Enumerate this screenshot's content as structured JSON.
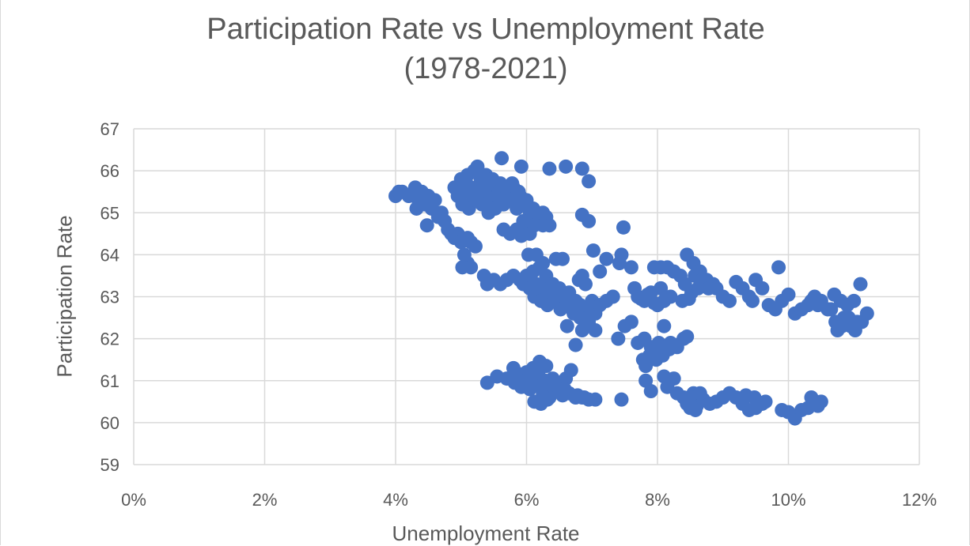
{
  "chart_data": {
    "type": "scatter",
    "title": "Participation Rate vs Unemployment Rate\n(1978-2021)",
    "xlabel": "Unemployment Rate",
    "ylabel": "Participation Rate",
    "xlim": [
      0,
      0.12
    ],
    "ylim": [
      59,
      67
    ],
    "xticks": [
      0,
      0.02,
      0.04,
      0.06,
      0.08,
      0.1,
      0.12
    ],
    "xtick_labels": [
      "0%",
      "2%",
      "4%",
      "6%",
      "8%",
      "10%",
      "12%"
    ],
    "yticks": [
      59,
      60,
      61,
      62,
      63,
      64,
      65,
      66,
      67
    ],
    "ytick_labels": [
      "59",
      "60",
      "61",
      "62",
      "63",
      "64",
      "65",
      "66",
      "67"
    ],
    "grid": true,
    "legend": "none",
    "marker_color": "#4472c4",
    "points": [
      [
        0.04,
        65.4
      ],
      [
        0.0405,
        65.5
      ],
      [
        0.041,
        65.5
      ],
      [
        0.042,
        65.4
      ],
      [
        0.043,
        65.6
      ],
      [
        0.0435,
        65.3
      ],
      [
        0.044,
        65.5
      ],
      [
        0.0445,
        65.2
      ],
      [
        0.045,
        65.4
      ],
      [
        0.046,
        65.3
      ],
      [
        0.0432,
        65.1
      ],
      [
        0.0455,
        65.1
      ],
      [
        0.0465,
        64.9
      ],
      [
        0.0448,
        64.7
      ],
      [
        0.047,
        65.0
      ],
      [
        0.0475,
        64.8
      ],
      [
        0.048,
        64.6
      ],
      [
        0.0485,
        64.5
      ],
      [
        0.049,
        64.4
      ],
      [
        0.0495,
        64.5
      ],
      [
        0.05,
        64.3
      ],
      [
        0.051,
        64.4
      ],
      [
        0.0515,
        64.3
      ],
      [
        0.0522,
        64.2
      ],
      [
        0.0505,
        64.0
      ],
      [
        0.051,
        63.8
      ],
      [
        0.0502,
        63.7
      ],
      [
        0.0515,
        63.7
      ],
      [
        0.049,
        65.6
      ],
      [
        0.0495,
        65.4
      ],
      [
        0.05,
        65.8
      ],
      [
        0.0505,
        65.5
      ],
      [
        0.051,
        65.9
      ],
      [
        0.0515,
        65.6
      ],
      [
        0.052,
        66.0
      ],
      [
        0.0525,
        66.1
      ],
      [
        0.053,
        65.8
      ],
      [
        0.0535,
        65.5
      ],
      [
        0.054,
        65.7
      ],
      [
        0.0545,
        65.3
      ],
      [
        0.055,
        65.6
      ],
      [
        0.0555,
        65.4
      ],
      [
        0.056,
        65.7
      ],
      [
        0.0565,
        65.2
      ],
      [
        0.057,
        65.5
      ],
      [
        0.0575,
        65.3
      ],
      [
        0.058,
        65.6
      ],
      [
        0.0585,
        65.1
      ],
      [
        0.059,
        65.4
      ],
      [
        0.0595,
        65.2
      ],
      [
        0.06,
        65.3
      ],
      [
        0.0605,
        65.0
      ],
      [
        0.061,
        65.1
      ],
      [
        0.0615,
        64.9
      ],
      [
        0.062,
        64.8
      ],
      [
        0.0625,
        65.0
      ],
      [
        0.063,
        64.9
      ],
      [
        0.0635,
        64.7
      ],
      [
        0.0612,
        64.7
      ],
      [
        0.0598,
        64.6
      ],
      [
        0.0565,
        64.6
      ],
      [
        0.0575,
        64.5
      ],
      [
        0.0585,
        64.6
      ],
      [
        0.0592,
        64.45
      ],
      [
        0.0502,
        65.2
      ],
      [
        0.0512,
        65.1
      ],
      [
        0.0522,
        65.3
      ],
      [
        0.0532,
        65.2
      ],
      [
        0.0542,
        65.0
      ],
      [
        0.0552,
        65.1
      ],
      [
        0.0508,
        65.7
      ],
      [
        0.0518,
        65.4
      ],
      [
        0.0528,
        65.5
      ],
      [
        0.0538,
        65.9
      ],
      [
        0.0548,
        65.8
      ],
      [
        0.0558,
        65.5
      ],
      [
        0.0568,
        65.6
      ],
      [
        0.0578,
        65.7
      ],
      [
        0.0588,
        65.5
      ],
      [
        0.0562,
        66.3
      ],
      [
        0.0592,
        66.1
      ],
      [
        0.0635,
        66.05
      ],
      [
        0.066,
        66.1
      ],
      [
        0.0685,
        66.05
      ],
      [
        0.0695,
        65.75
      ],
      [
        0.0685,
        64.95
      ],
      [
        0.0695,
        64.8
      ],
      [
        0.0625,
        64.7
      ],
      [
        0.0605,
        64.5
      ],
      [
        0.0595,
        64.8
      ],
      [
        0.0535,
        63.5
      ],
      [
        0.054,
        63.3
      ],
      [
        0.055,
        63.4
      ],
      [
        0.056,
        63.3
      ],
      [
        0.057,
        63.4
      ],
      [
        0.058,
        63.5
      ],
      [
        0.059,
        63.4
      ],
      [
        0.0595,
        63.3
      ],
      [
        0.06,
        63.5
      ],
      [
        0.0605,
        63.2
      ],
      [
        0.061,
        63.6
      ],
      [
        0.0615,
        63.3
      ],
      [
        0.062,
        63.7
      ],
      [
        0.0625,
        63.2
      ],
      [
        0.063,
        63.5
      ],
      [
        0.0635,
        63.0
      ],
      [
        0.064,
        63.3
      ],
      [
        0.0645,
        62.9
      ],
      [
        0.065,
        63.2
      ],
      [
        0.0655,
        63.0
      ],
      [
        0.066,
        62.8
      ],
      [
        0.0665,
        63.1
      ],
      [
        0.067,
        62.7
      ],
      [
        0.0675,
        62.9
      ],
      [
        0.068,
        63.4
      ],
      [
        0.0685,
        63.5
      ],
      [
        0.069,
        63.3
      ],
      [
        0.0695,
        62.7
      ],
      [
        0.07,
        62.9
      ],
      [
        0.0705,
        62.6
      ],
      [
        0.0603,
        64.0
      ],
      [
        0.0615,
        64.0
      ],
      [
        0.0625,
        63.8
      ],
      [
        0.0645,
        63.9
      ],
      [
        0.0655,
        63.9
      ],
      [
        0.0612,
        63.0
      ],
      [
        0.0622,
        62.9
      ],
      [
        0.0632,
        62.8
      ],
      [
        0.0642,
        62.9
      ],
      [
        0.0652,
        62.7
      ],
      [
        0.0662,
        62.9
      ],
      [
        0.0672,
        62.6
      ],
      [
        0.0682,
        62.8
      ],
      [
        0.0692,
        62.5
      ],
      [
        0.0702,
        62.7
      ],
      [
        0.0712,
        62.8
      ],
      [
        0.0722,
        62.9
      ],
      [
        0.0732,
        63.0
      ],
      [
        0.0742,
        63.8
      ],
      [
        0.0702,
        64.1
      ],
      [
        0.0712,
        63.6
      ],
      [
        0.0722,
        63.9
      ],
      [
        0.0745,
        64.0
      ],
      [
        0.0748,
        64.65
      ],
      [
        0.0662,
        62.3
      ],
      [
        0.0675,
        61.85
      ],
      [
        0.0685,
        62.2
      ],
      [
        0.0695,
        62.4
      ],
      [
        0.0705,
        62.2
      ],
      [
        0.0682,
        62.5
      ],
      [
        0.076,
        63.7
      ],
      [
        0.077,
        63.0
      ],
      [
        0.078,
        62.9
      ],
      [
        0.079,
        63.1
      ],
      [
        0.08,
        62.8
      ],
      [
        0.081,
        62.9
      ],
      [
        0.082,
        63.0
      ],
      [
        0.0765,
        63.2
      ],
      [
        0.0775,
        62.95
      ],
      [
        0.0785,
        63.05
      ],
      [
        0.0795,
        62.85
      ],
      [
        0.0805,
        63.2
      ],
      [
        0.0815,
        63.7
      ],
      [
        0.0825,
        63.6
      ],
      [
        0.0835,
        63.5
      ],
      [
        0.0845,
        64.0
      ],
      [
        0.0855,
        63.8
      ],
      [
        0.0865,
        63.6
      ],
      [
        0.0875,
        63.4
      ],
      [
        0.0885,
        63.3
      ],
      [
        0.0842,
        63.3
      ],
      [
        0.0852,
        63.1
      ],
      [
        0.0862,
        63.2
      ],
      [
        0.0838,
        62.9
      ],
      [
        0.0848,
        62.95
      ],
      [
        0.0795,
        63.7
      ],
      [
        0.0805,
        63.7
      ],
      [
        0.0857,
        63.5
      ],
      [
        0.0868,
        63.4
      ],
      [
        0.0878,
        63.2
      ],
      [
        0.089,
        63.2
      ],
      [
        0.09,
        63.0
      ],
      [
        0.091,
        62.9
      ],
      [
        0.092,
        63.35
      ],
      [
        0.093,
        63.2
      ],
      [
        0.094,
        63.0
      ],
      [
        0.0945,
        62.9
      ],
      [
        0.095,
        63.4
      ],
      [
        0.096,
        63.2
      ],
      [
        0.097,
        62.8
      ],
      [
        0.098,
        62.7
      ],
      [
        0.0985,
        63.7
      ],
      [
        0.099,
        62.9
      ],
      [
        0.1,
        63.05
      ],
      [
        0.101,
        62.6
      ],
      [
        0.102,
        62.7
      ],
      [
        0.103,
        62.8
      ],
      [
        0.104,
        63.0
      ],
      [
        0.105,
        62.9
      ],
      [
        0.106,
        62.7
      ],
      [
        0.107,
        63.05
      ],
      [
        0.108,
        62.9
      ],
      [
        0.109,
        62.8
      ],
      [
        0.11,
        62.9
      ],
      [
        0.111,
        63.3
      ],
      [
        0.112,
        62.6
      ],
      [
        0.1105,
        62.4
      ],
      [
        0.1095,
        62.3
      ],
      [
        0.1085,
        62.5
      ],
      [
        0.1075,
        62.2
      ],
      [
        0.1065,
        62.7
      ],
      [
        0.1045,
        62.8
      ],
      [
        0.1035,
        62.9
      ],
      [
        0.1112,
        62.4
      ],
      [
        0.1072,
        62.4
      ],
      [
        0.1082,
        62.3
      ],
      [
        0.1092,
        62.5
      ],
      [
        0.1102,
        62.2
      ],
      [
        0.074,
        62.0
      ],
      [
        0.075,
        62.3
      ],
      [
        0.076,
        62.4
      ],
      [
        0.077,
        61.9
      ],
      [
        0.078,
        62.0
      ],
      [
        0.079,
        61.8
      ],
      [
        0.08,
        61.7
      ],
      [
        0.081,
        62.3
      ],
      [
        0.082,
        61.9
      ],
      [
        0.083,
        61.8
      ],
      [
        0.084,
        62.0
      ],
      [
        0.0845,
        62.05
      ],
      [
        0.0778,
        61.5
      ],
      [
        0.0788,
        61.6
      ],
      [
        0.0798,
        61.5
      ],
      [
        0.0808,
        61.6
      ],
      [
        0.0818,
        61.75
      ],
      [
        0.0828,
        61.85
      ],
      [
        0.0782,
        61.35
      ],
      [
        0.0792,
        61.7
      ],
      [
        0.0802,
        61.9
      ],
      [
        0.0812,
        61.8
      ],
      [
        0.0745,
        60.55
      ],
      [
        0.0782,
        61.0
      ],
      [
        0.079,
        60.75
      ],
      [
        0.081,
        61.1
      ],
      [
        0.0825,
        61.05
      ],
      [
        0.0815,
        60.85
      ],
      [
        0.083,
        60.7
      ],
      [
        0.084,
        60.6
      ],
      [
        0.085,
        60.35
      ],
      [
        0.086,
        60.4
      ],
      [
        0.087,
        60.55
      ],
      [
        0.088,
        60.45
      ],
      [
        0.089,
        60.5
      ],
      [
        0.09,
        60.6
      ],
      [
        0.091,
        60.7
      ],
      [
        0.092,
        60.6
      ],
      [
        0.093,
        60.45
      ],
      [
        0.094,
        60.3
      ],
      [
        0.095,
        60.35
      ],
      [
        0.096,
        60.45
      ],
      [
        0.0935,
        60.65
      ],
      [
        0.0948,
        60.6
      ],
      [
        0.0965,
        60.5
      ],
      [
        0.0855,
        60.7
      ],
      [
        0.0865,
        60.7
      ],
      [
        0.0845,
        60.45
      ],
      [
        0.0858,
        60.3
      ],
      [
        0.099,
        60.3
      ],
      [
        0.1,
        60.25
      ],
      [
        0.101,
        60.1
      ],
      [
        0.102,
        60.3
      ],
      [
        0.103,
        60.35
      ],
      [
        0.1035,
        60.6
      ],
      [
        0.1045,
        60.4
      ],
      [
        0.105,
        60.5
      ],
      [
        0.054,
        60.95
      ],
      [
        0.0555,
        61.1
      ],
      [
        0.057,
        61.05
      ],
      [
        0.058,
        61.3
      ],
      [
        0.059,
        61.15
      ],
      [
        0.06,
        61.2
      ],
      [
        0.061,
        61.3
      ],
      [
        0.062,
        61.45
      ],
      [
        0.063,
        61.35
      ],
      [
        0.064,
        61.05
      ],
      [
        0.065,
        60.95
      ],
      [
        0.066,
        61.05
      ],
      [
        0.0605,
        60.8
      ],
      [
        0.0615,
        60.9
      ],
      [
        0.0625,
        60.7
      ],
      [
        0.0635,
        60.6
      ],
      [
        0.0645,
        60.75
      ],
      [
        0.0655,
        60.65
      ],
      [
        0.0665,
        60.7
      ],
      [
        0.0675,
        60.6
      ],
      [
        0.0685,
        60.6
      ],
      [
        0.0695,
        60.55
      ],
      [
        0.0705,
        60.55
      ],
      [
        0.0668,
        61.25
      ],
      [
        0.0612,
        60.5
      ],
      [
        0.0622,
        60.45
      ],
      [
        0.0632,
        60.55
      ],
      [
        0.0598,
        61.0
      ],
      [
        0.0608,
        61.1
      ],
      [
        0.0618,
        61.2
      ],
      [
        0.0628,
        61.0
      ],
      [
        0.0638,
        60.9
      ],
      [
        0.0648,
        60.85
      ],
      [
        0.0658,
        60.8
      ],
      [
        0.0678,
        60.65
      ],
      [
        0.0688,
        60.6
      ],
      [
        0.0582,
        60.95
      ],
      [
        0.0592,
        60.85
      ]
    ]
  }
}
